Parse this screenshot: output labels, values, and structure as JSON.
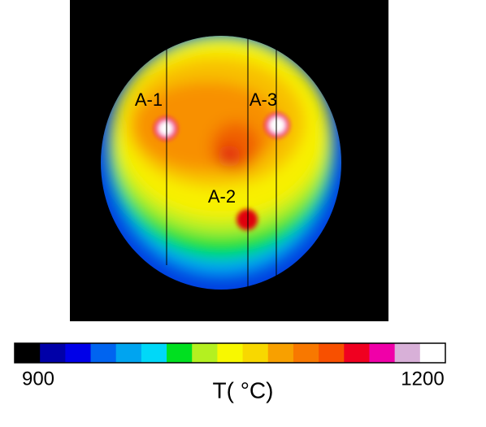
{
  "image": {
    "labels": [
      "A-1",
      "A-3",
      "A-2"
    ]
  },
  "colorbar": {
    "colors": [
      "#000000",
      "#0000a8",
      "#0000e8",
      "#0064f0",
      "#00a4f0",
      "#00d8f8",
      "#00e020",
      "#b4f020",
      "#f8f800",
      "#f8d800",
      "#f8a000",
      "#f87800",
      "#f85000",
      "#f00020",
      "#f000a8",
      "#d8b0d8",
      "#ffffff"
    ],
    "min_label": "900",
    "max_label": "1200",
    "title": "T( °C)"
  }
}
